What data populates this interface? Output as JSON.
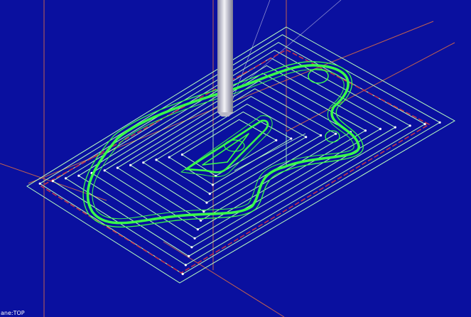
{
  "viewport": {
    "view_label": "ane:TOP",
    "colors": {
      "background": "#0a109f",
      "toolpath": "#b9ffc0",
      "contour": "#39ff4a",
      "boundary": "#c0304a",
      "axis": "#c06050",
      "tool": "#c8c8d0",
      "node": "#ffffff"
    },
    "icons": {
      "tool": "endmill-tool-icon"
    }
  }
}
